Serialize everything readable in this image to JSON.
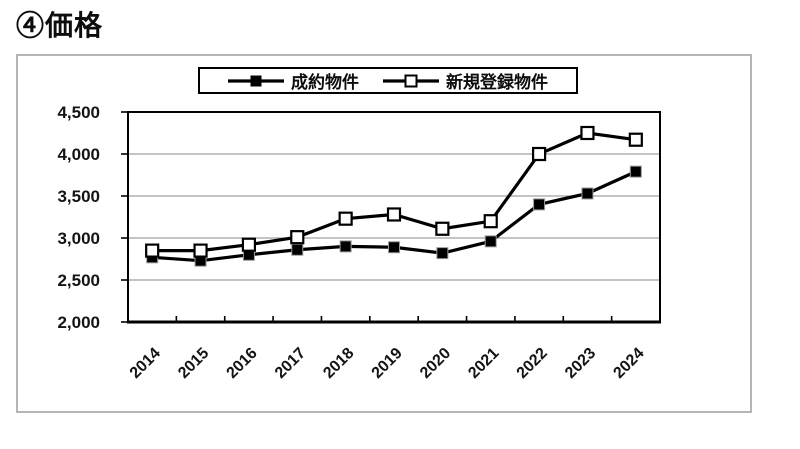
{
  "page": {
    "title": "④価格"
  },
  "legend": {
    "border_color": "#000000"
  },
  "chart_data": {
    "type": "line",
    "categories": [
      "2014",
      "2015",
      "2016",
      "2017",
      "2018",
      "2019",
      "2020",
      "2021",
      "2022",
      "2023",
      "2024"
    ],
    "series": [
      {
        "name": "成約物件",
        "marker": "filled-square",
        "color": "#000000",
        "values": [
          2770,
          2730,
          2800,
          2860,
          2900,
          2890,
          2820,
          2960,
          3400,
          3530,
          3790
        ]
      },
      {
        "name": "新規登録物件",
        "marker": "open-square",
        "color": "#000000",
        "values": [
          2850,
          2850,
          2920,
          3010,
          3230,
          3280,
          3110,
          3200,
          4000,
          4250,
          4170
        ]
      }
    ],
    "title": "",
    "xlabel": "",
    "ylabel": "",
    "ylim": [
      2000,
      4500
    ],
    "ytick_step": 500,
    "ytick_labels": [
      "2,000",
      "2,500",
      "3,000",
      "3,500",
      "4,000",
      "4,500"
    ],
    "grid": "horizontal",
    "legend_position": "top-center",
    "gridline_color": "#a0a0a0",
    "axis_color": "#000000",
    "plot_background": "#ffffff"
  }
}
